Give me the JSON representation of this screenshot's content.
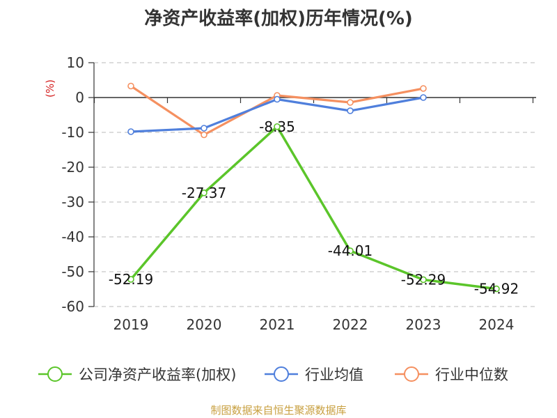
{
  "chart_data": {
    "type": "line",
    "title": "净资产收益率(加权)历年情况(%)",
    "ylabel": "(%)",
    "xlabel": "",
    "categories": [
      "2019",
      "2020",
      "2021",
      "2022",
      "2023",
      "2024"
    ],
    "ylim": [
      -60,
      10
    ],
    "yticks": [
      10,
      0,
      -10,
      -20,
      -30,
      -40,
      -50,
      -60
    ],
    "series": [
      {
        "name": "公司净资产收益率(加权)",
        "color": "#5bc52a",
        "values": [
          -52.19,
          -27.37,
          -8.35,
          -44.01,
          -52.29,
          -54.92
        ],
        "labels": [
          "-52.19",
          "-27.37",
          "-8.35",
          "-44.01",
          "-52.29",
          "-54.92"
        ]
      },
      {
        "name": "行业均值",
        "color": "#4f7fdc",
        "values": [
          -9.8,
          -8.8,
          -0.5,
          -3.8,
          0.0,
          null
        ]
      },
      {
        "name": "行业中位数",
        "color": "#f59060",
        "values": [
          3.3,
          -10.7,
          0.6,
          -1.4,
          2.6,
          null
        ]
      }
    ],
    "grid": true,
    "legend": "bottom"
  },
  "source": "制图数据来自恒生聚源数据库"
}
